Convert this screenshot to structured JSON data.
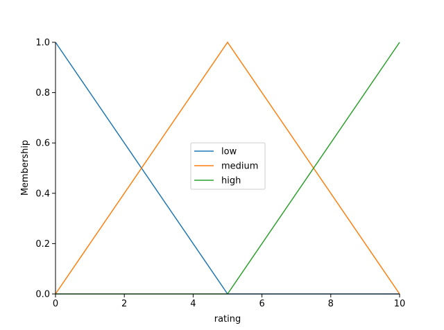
{
  "chart_data": {
    "type": "line",
    "xlabel": "rating",
    "ylabel": "Membership",
    "xlim": [
      0,
      10
    ],
    "ylim": [
      0,
      1
    ],
    "xticks": [
      0,
      2,
      4,
      6,
      8,
      10
    ],
    "xtick_labels": [
      "0",
      "2",
      "4",
      "6",
      "8",
      "10"
    ],
    "yticks": [
      0,
      0.2,
      0.4,
      0.6,
      0.8,
      1.0
    ],
    "ytick_labels": [
      "0.0",
      "0.2",
      "0.4",
      "0.6",
      "0.8",
      "1.0"
    ],
    "grid": false,
    "legend_position": "center",
    "series": [
      {
        "name": "low",
        "color": "#1f77b4",
        "x": [
          0,
          5,
          10
        ],
        "y": [
          1,
          0,
          0
        ]
      },
      {
        "name": "medium",
        "color": "#ff7f0e",
        "x": [
          0,
          5,
          10
        ],
        "y": [
          0,
          1,
          0
        ]
      },
      {
        "name": "high",
        "color": "#2ca02c",
        "x": [
          0,
          5,
          10
        ],
        "y": [
          0,
          0,
          1
        ]
      }
    ]
  }
}
